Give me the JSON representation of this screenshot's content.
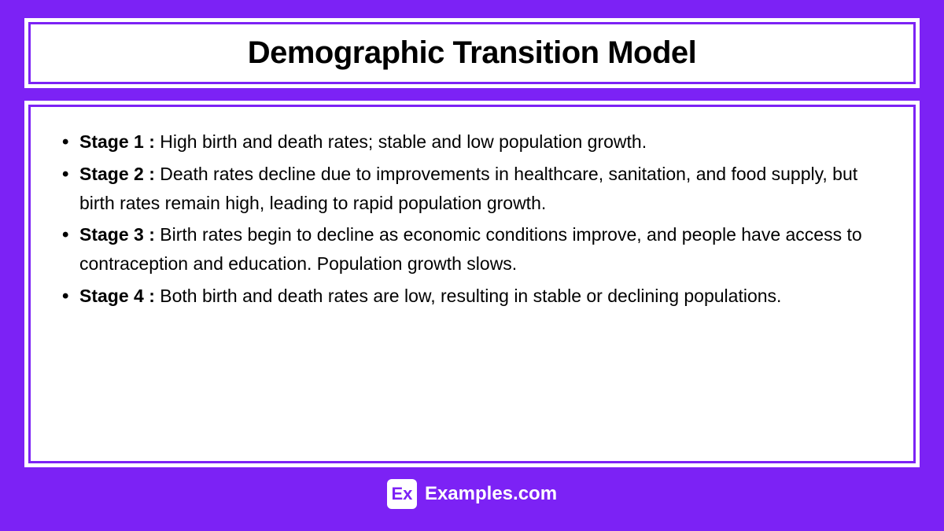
{
  "title": "Demographic Transition Model",
  "stages": [
    {
      "label": "Stage 1 :",
      "text": " High birth and death rates; stable and low population growth."
    },
    {
      "label": "Stage 2 :",
      "text": " Death rates decline due to improvements in healthcare, sanitation, and food supply, but birth rates remain high, leading to rapid population growth."
    },
    {
      "label": "Stage 3 :",
      "text": " Birth rates begin to decline as economic conditions improve, and people have access to contraception and education. Population growth slows."
    },
    {
      "label": "Stage 4 :",
      "text": " Both birth and death rates are low, resulting in stable or declining populations."
    }
  ],
  "footer": {
    "logo_text": "Ex",
    "site_text": "Examples.com"
  },
  "colors": {
    "background": "#7c22f5",
    "panel_bg": "#ffffff",
    "text": "#000000",
    "footer_text": "#ffffff"
  }
}
